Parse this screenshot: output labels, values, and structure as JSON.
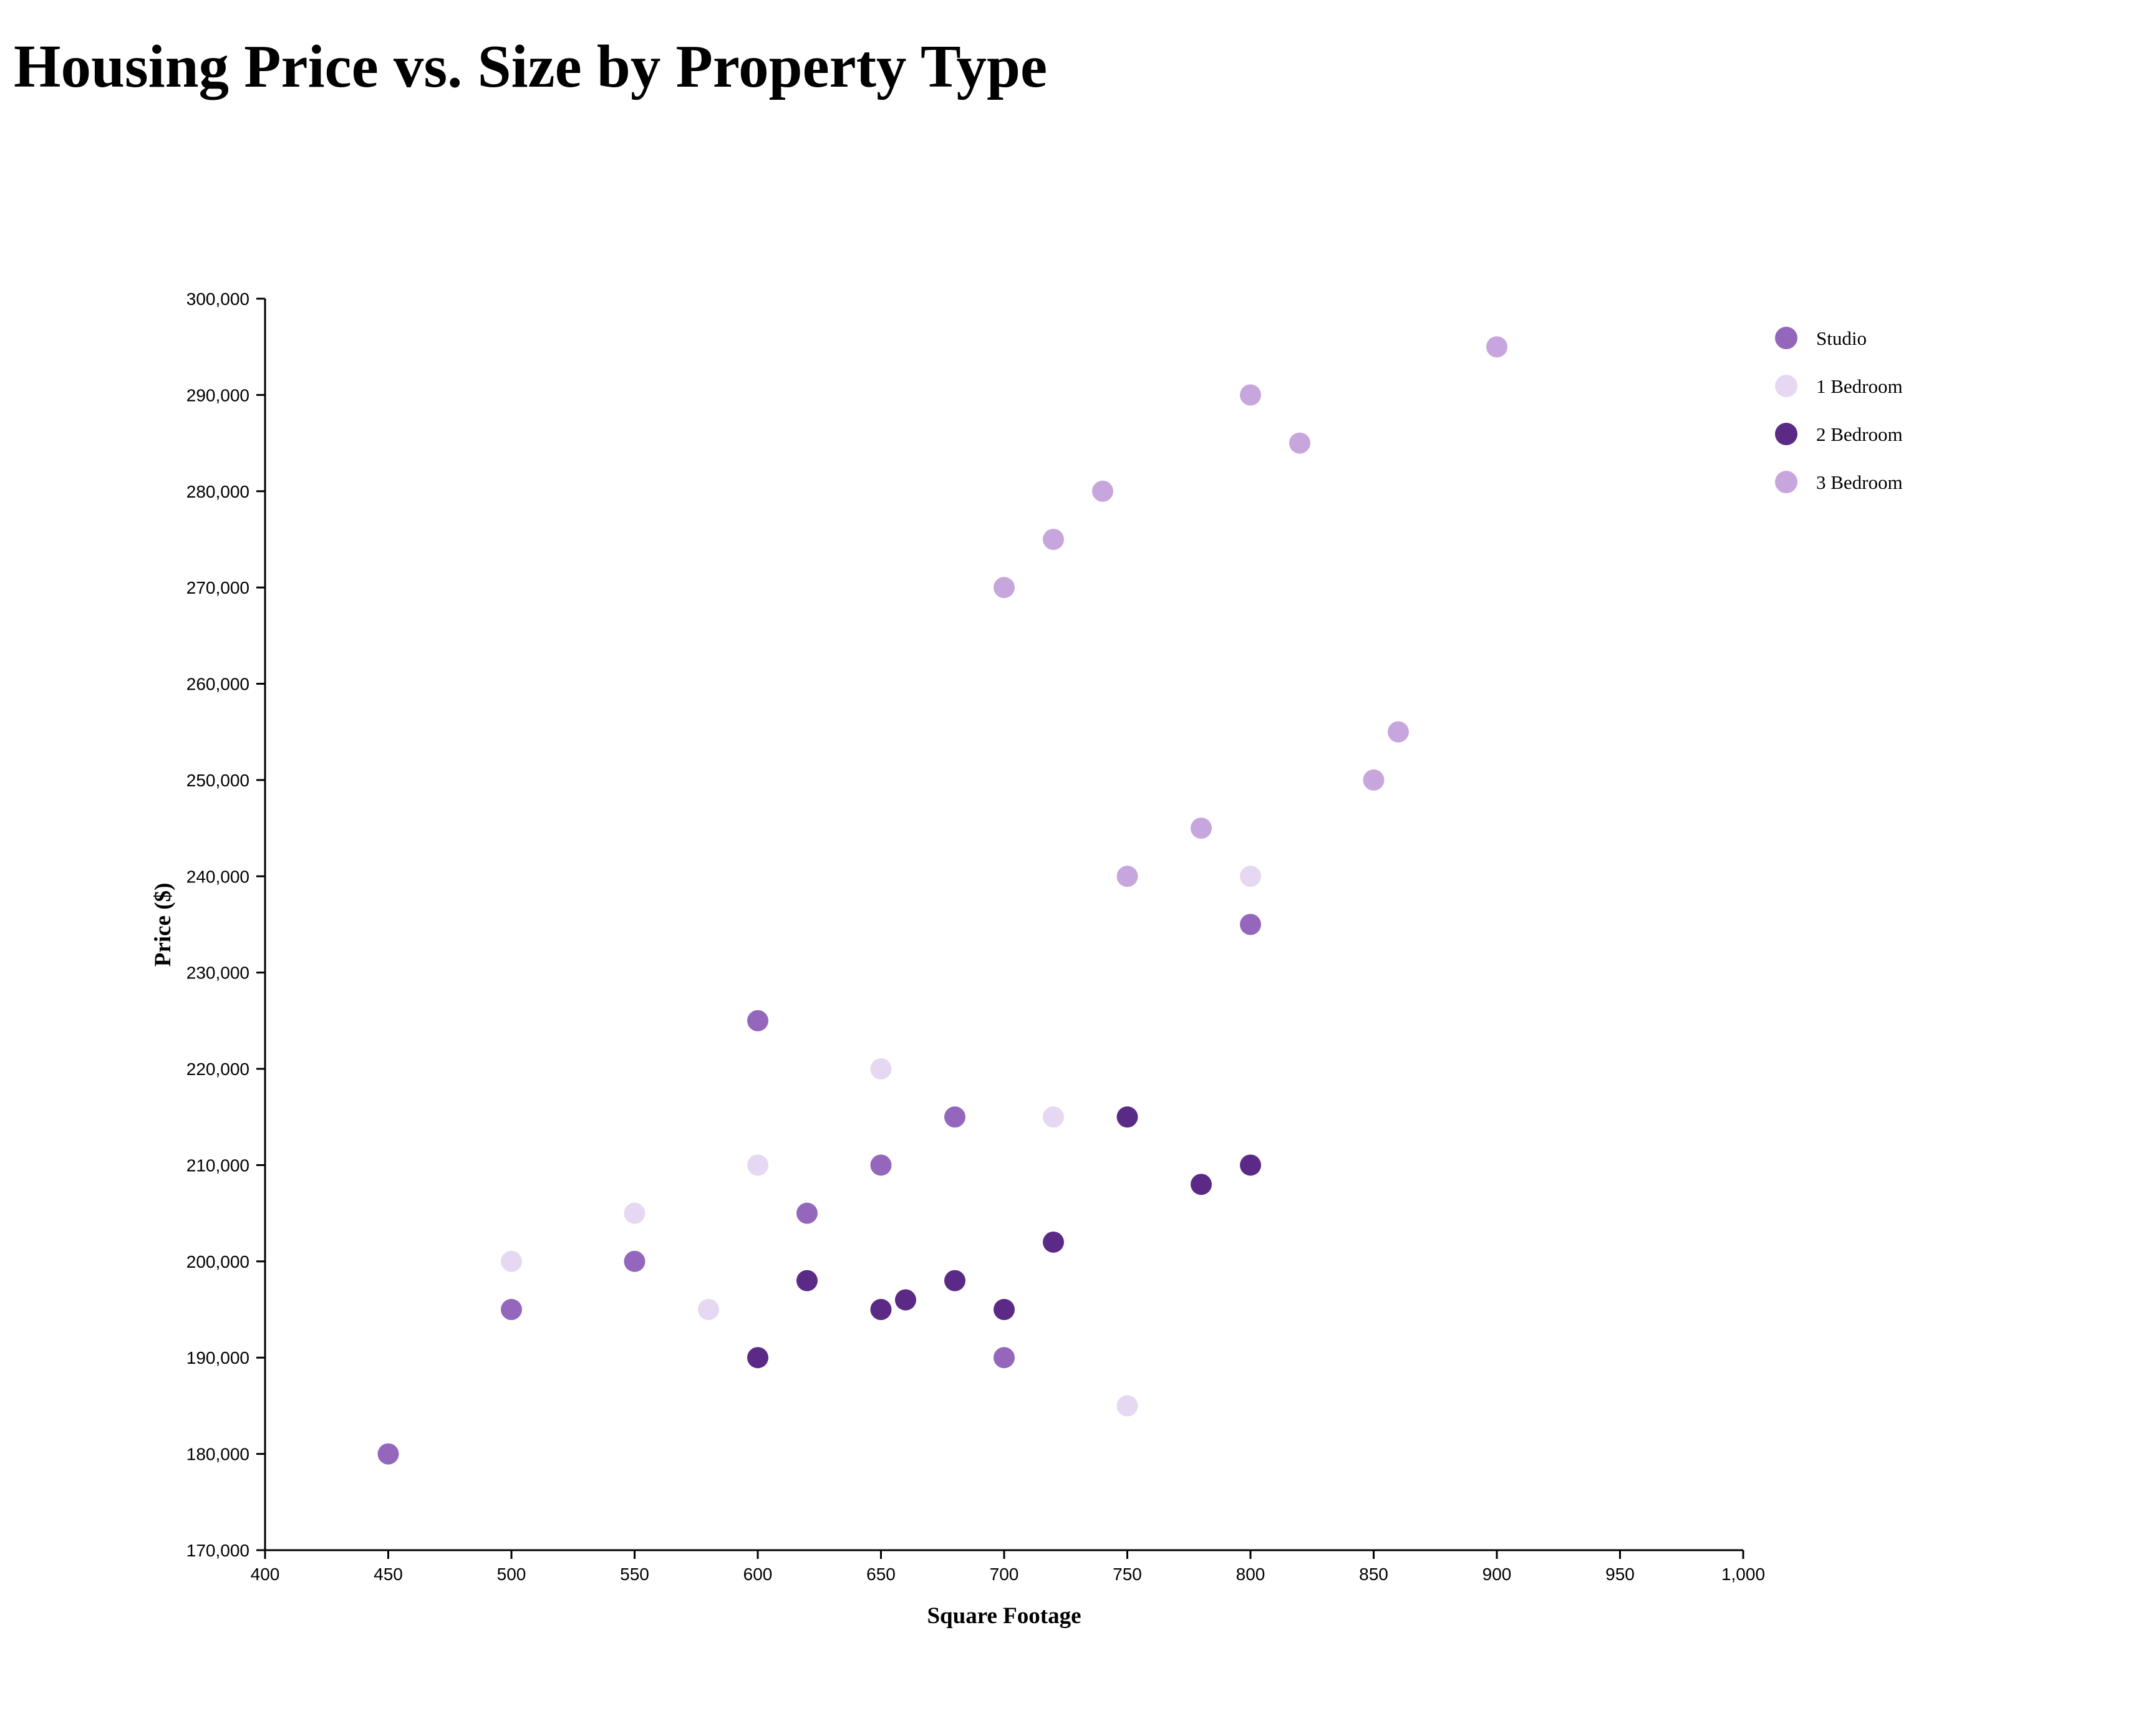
{
  "title": "Housing Price vs. Size by Property Type",
  "chart_data": {
    "type": "scatter",
    "title": "Housing Price vs. Size by Property Type",
    "xlabel": "Square Footage",
    "ylabel": "Price ($)",
    "xlim": [
      400,
      1000
    ],
    "ylim": [
      170000,
      300000
    ],
    "x_ticks": [
      400,
      450,
      500,
      550,
      600,
      650,
      700,
      750,
      800,
      850,
      900,
      950,
      1000
    ],
    "y_ticks": [
      170000,
      180000,
      190000,
      200000,
      210000,
      220000,
      230000,
      240000,
      250000,
      260000,
      270000,
      280000,
      290000,
      300000
    ],
    "x_tick_labels": [
      "400",
      "450",
      "500",
      "550",
      "600",
      "650",
      "700",
      "750",
      "800",
      "850",
      "900",
      "950",
      "1,000"
    ],
    "y_tick_labels": [
      "170,000",
      "180,000",
      "190,000",
      "200,000",
      "210,000",
      "220,000",
      "230,000",
      "240,000",
      "250,000",
      "260,000",
      "270,000",
      "280,000",
      "290,000",
      "300,000"
    ],
    "grid": false,
    "legend_position": "top-right",
    "series": [
      {
        "name": "Studio",
        "color": "#9467bd",
        "points": [
          {
            "x": 450,
            "y": 180000
          },
          {
            "x": 500,
            "y": 195000
          },
          {
            "x": 550,
            "y": 200000
          },
          {
            "x": 600,
            "y": 225000
          },
          {
            "x": 620,
            "y": 205000
          },
          {
            "x": 650,
            "y": 210000
          },
          {
            "x": 680,
            "y": 215000
          },
          {
            "x": 700,
            "y": 190000
          },
          {
            "x": 800,
            "y": 235000
          }
        ]
      },
      {
        "name": "1 Bedroom",
        "color": "#e6d8f2",
        "points": [
          {
            "x": 500,
            "y": 200000
          },
          {
            "x": 550,
            "y": 205000
          },
          {
            "x": 580,
            "y": 195000
          },
          {
            "x": 600,
            "y": 210000
          },
          {
            "x": 650,
            "y": 220000
          },
          {
            "x": 720,
            "y": 215000
          },
          {
            "x": 750,
            "y": 185000
          },
          {
            "x": 800,
            "y": 240000
          }
        ]
      },
      {
        "name": "2 Bedroom",
        "color": "#5b2a86",
        "points": [
          {
            "x": 600,
            "y": 190000
          },
          {
            "x": 620,
            "y": 198000
          },
          {
            "x": 650,
            "y": 195000
          },
          {
            "x": 660,
            "y": 196000
          },
          {
            "x": 680,
            "y": 198000
          },
          {
            "x": 700,
            "y": 195000
          },
          {
            "x": 720,
            "y": 202000
          },
          {
            "x": 750,
            "y": 215000
          },
          {
            "x": 780,
            "y": 208000
          },
          {
            "x": 800,
            "y": 210000
          }
        ]
      },
      {
        "name": "3 Bedroom",
        "color": "#c7a6dd",
        "points": [
          {
            "x": 700,
            "y": 270000
          },
          {
            "x": 720,
            "y": 275000
          },
          {
            "x": 740,
            "y": 280000
          },
          {
            "x": 750,
            "y": 240000
          },
          {
            "x": 780,
            "y": 245000
          },
          {
            "x": 800,
            "y": 290000
          },
          {
            "x": 820,
            "y": 285000
          },
          {
            "x": 850,
            "y": 250000
          },
          {
            "x": 860,
            "y": 255000
          },
          {
            "x": 900,
            "y": 295000
          }
        ]
      }
    ]
  }
}
